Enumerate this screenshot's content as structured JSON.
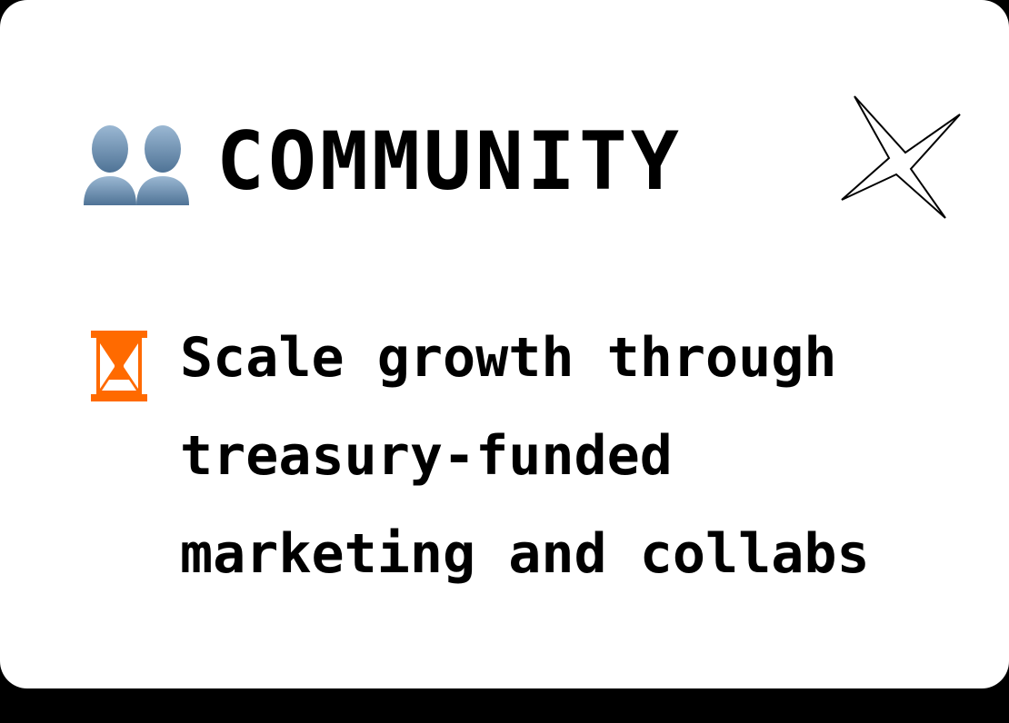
{
  "card": {
    "title": "COMMUNITY",
    "items": [
      {
        "icon": "hourglass-icon",
        "text": "Scale growth through treasury-funded marketing and collabs"
      }
    ]
  },
  "icons": {
    "title_icon": "busts-in-silhouette-icon",
    "decoration": "sparkle-icon"
  },
  "colors": {
    "background": "#ffffff",
    "text": "#000000",
    "hourglass": "#ff6a00",
    "users_icon": "#6f93b5",
    "shadow": "#000000"
  }
}
